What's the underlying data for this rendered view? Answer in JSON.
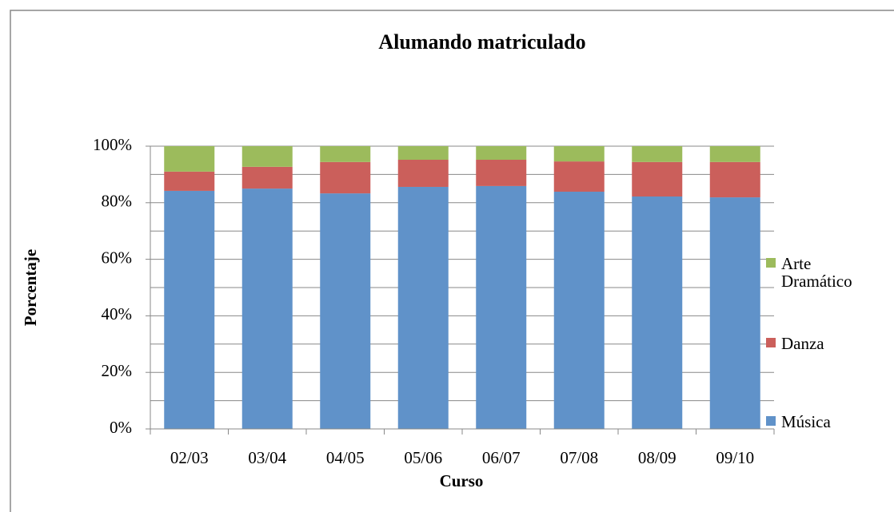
{
  "chart_data": {
    "type": "stacked_bar",
    "title": "Alumando matriculado",
    "x_label": "Curso",
    "y_label": "Porcentaje",
    "categories": [
      "02/03",
      "03/04",
      "04/05",
      "05/06",
      "06/07",
      "07/08",
      "08/09",
      "09/10"
    ],
    "series": [
      {
        "name": "Música",
        "color": "#6092c9",
        "values": [
          84.2,
          85.0,
          83.3,
          85.6,
          85.9,
          83.9,
          82.2,
          81.9
        ]
      },
      {
        "name": "Danza",
        "color": "#cb5f5b",
        "values": [
          6.8,
          7.7,
          11.1,
          9.6,
          9.3,
          10.7,
          12.2,
          12.5
        ]
      },
      {
        "name": "Arte Dramático",
        "color": "#9cbb5c",
        "values": [
          9.0,
          7.3,
          5.6,
          4.8,
          4.8,
          5.4,
          5.6,
          5.6
        ]
      }
    ],
    "ylim": [
      0,
      100
    ],
    "yticks": [
      {
        "value": 0,
        "label": "0%"
      },
      {
        "value": 20,
        "label": "20%"
      },
      {
        "value": 40,
        "label": "40%"
      },
      {
        "value": 60,
        "label": "60%"
      },
      {
        "value": 80,
        "label": "80%"
      },
      {
        "value": 100,
        "label": "100%"
      }
    ],
    "minor_yticks": [
      10,
      30,
      50,
      70,
      90
    ],
    "grid": true,
    "legend": "right"
  }
}
